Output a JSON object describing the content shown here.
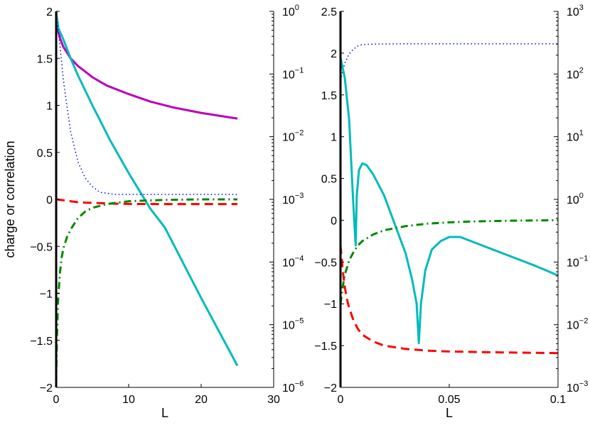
{
  "chart_data": [
    {
      "type": "line",
      "xlabel": "L",
      "ylabel": "charge or correlation",
      "xlim": [
        0,
        30
      ],
      "ylim": [
        -2,
        2
      ],
      "y2_scale": "log",
      "y2lim": [
        1e-06,
        1
      ],
      "xticks": [
        "0",
        "10",
        "20",
        "30"
      ],
      "yticks": [
        "−2",
        "−1.5",
        "−1",
        "−0.5",
        "0",
        "0.5",
        "1",
        "1.5",
        "2"
      ],
      "y2ticks": [
        "10^-6",
        "10^-5",
        "10^-4",
        "10^-3",
        "10^-2",
        "10^-1",
        "10^0"
      ],
      "grid": false,
      "series": [
        {
          "color": "#bb00bb",
          "style": "solid",
          "axis": "left",
          "x": [
            0,
            0.2,
            0.5,
            1,
            2,
            3,
            4,
            5,
            7,
            10,
            13,
            16,
            20,
            25
          ],
          "y": [
            2.0,
            1.82,
            1.72,
            1.62,
            1.5,
            1.42,
            1.36,
            1.3,
            1.21,
            1.12,
            1.04,
            0.98,
            0.92,
            0.86
          ]
        },
        {
          "color": "#00bbbb",
          "style": "solid",
          "axis": "left",
          "x": [
            0,
            0.3,
            1,
            2,
            3,
            5,
            7.5,
            10,
            13,
            15,
            20,
            25
          ],
          "y": [
            2.0,
            1.82,
            1.7,
            1.5,
            1.32,
            1.0,
            0.62,
            0.28,
            -0.1,
            -0.3,
            -1.05,
            -1.77
          ]
        },
        {
          "color": "#0000ff",
          "style": "dotted",
          "axis": "right",
          "x": [
            0,
            0.5,
            1,
            1.5,
            2,
            3,
            4,
            5,
            6,
            8,
            10,
            15,
            20,
            25
          ],
          "y": [
            1.0,
            0.3,
            0.08,
            0.03,
            0.012,
            0.004,
            0.0022,
            0.0016,
            0.0013,
            0.0012,
            0.0012,
            0.0012,
            0.0012,
            0.0012
          ]
        },
        {
          "color": "#ff0000",
          "style": "dashed",
          "axis": "left",
          "x": [
            0,
            1,
            2,
            3,
            4,
            6,
            8,
            10,
            15,
            20,
            25
          ],
          "y": [
            0.0,
            -0.01,
            -0.02,
            -0.03,
            -0.035,
            -0.04,
            -0.045,
            -0.048,
            -0.05,
            -0.05,
            -0.05
          ]
        },
        {
          "color": "#008800",
          "style": "dashdot",
          "axis": "left",
          "x": [
            0,
            0.1,
            0.25,
            0.5,
            0.75,
            1,
            1.5,
            2,
            3,
            4,
            5,
            7,
            10,
            15,
            20,
            25
          ],
          "y": [
            -1.95,
            -1.5,
            -1.1,
            -0.8,
            -0.62,
            -0.52,
            -0.4,
            -0.32,
            -0.2,
            -0.13,
            -0.09,
            -0.05,
            -0.02,
            -0.005,
            0.0,
            0.0
          ]
        }
      ]
    },
    {
      "type": "line",
      "xlabel": "L",
      "ylabel": "",
      "xlim": [
        0,
        0.1
      ],
      "ylim": [
        -2,
        2.5
      ],
      "y2_scale": "log",
      "y2lim": [
        0.001,
        1000
      ],
      "xticks": [
        "0",
        "0.05",
        "0.1"
      ],
      "yticks": [
        "−2",
        "−1.5",
        "−1",
        "−0.5",
        "0",
        "0.5",
        "1",
        "1.5",
        "2",
        "2.5"
      ],
      "y2ticks": [
        "10^-3",
        "10^-2",
        "10^-1",
        "10^0",
        "10^1",
        "10^2",
        "10^3"
      ],
      "grid": false,
      "series": [
        {
          "color": "#0000ff",
          "style": "dotted",
          "axis": "right",
          "x": [
            0,
            0.002,
            0.004,
            0.006,
            0.008,
            0.01,
            0.015,
            0.02,
            0.03,
            0.05,
            0.1
          ],
          "y": [
            80,
            150,
            210,
            250,
            280,
            295,
            300,
            302,
            303,
            303,
            303
          ]
        },
        {
          "color": "#00bbbb",
          "style": "solid",
          "axis": "left",
          "x": [
            0,
            0.002,
            0.004,
            0.0055,
            0.0065,
            0.007,
            0.0075,
            0.0085,
            0.01,
            0.012,
            0.015,
            0.02,
            0.025,
            0.03,
            0.033,
            0.035,
            0.036,
            0.037,
            0.039,
            0.042,
            0.046,
            0.05,
            0.055,
            0.06,
            0.07,
            0.08,
            0.09,
            0.1
          ],
          "y": [
            1.95,
            1.7,
            1.2,
            0.4,
            -0.1,
            -0.3,
            0.3,
            0.6,
            0.68,
            0.66,
            0.55,
            0.3,
            -0.05,
            -0.4,
            -0.72,
            -1.0,
            -1.47,
            -1.0,
            -0.6,
            -0.35,
            -0.25,
            -0.2,
            -0.2,
            -0.25,
            -0.35,
            -0.45,
            -0.55,
            -0.66
          ]
        },
        {
          "color": "#ff0000",
          "style": "dashed",
          "axis": "left",
          "x": [
            0,
            0.001,
            0.002,
            0.003,
            0.004,
            0.006,
            0.008,
            0.01,
            0.015,
            0.02,
            0.03,
            0.04,
            0.05,
            0.07,
            0.1
          ],
          "y": [
            -0.3,
            -0.6,
            -0.8,
            -0.95,
            -1.05,
            -1.2,
            -1.3,
            -1.37,
            -1.45,
            -1.5,
            -1.54,
            -1.56,
            -1.57,
            -1.58,
            -1.59
          ]
        },
        {
          "color": "#008800",
          "style": "dashdot",
          "axis": "left",
          "x": [
            0,
            0.001,
            0.002,
            0.004,
            0.006,
            0.008,
            0.01,
            0.015,
            0.02,
            0.03,
            0.04,
            0.05,
            0.06,
            0.08,
            0.1
          ],
          "y": [
            -1.0,
            -0.8,
            -0.65,
            -0.48,
            -0.38,
            -0.3,
            -0.25,
            -0.17,
            -0.12,
            -0.07,
            -0.04,
            -0.025,
            -0.015,
            -0.005,
            0.0
          ]
        }
      ]
    }
  ]
}
